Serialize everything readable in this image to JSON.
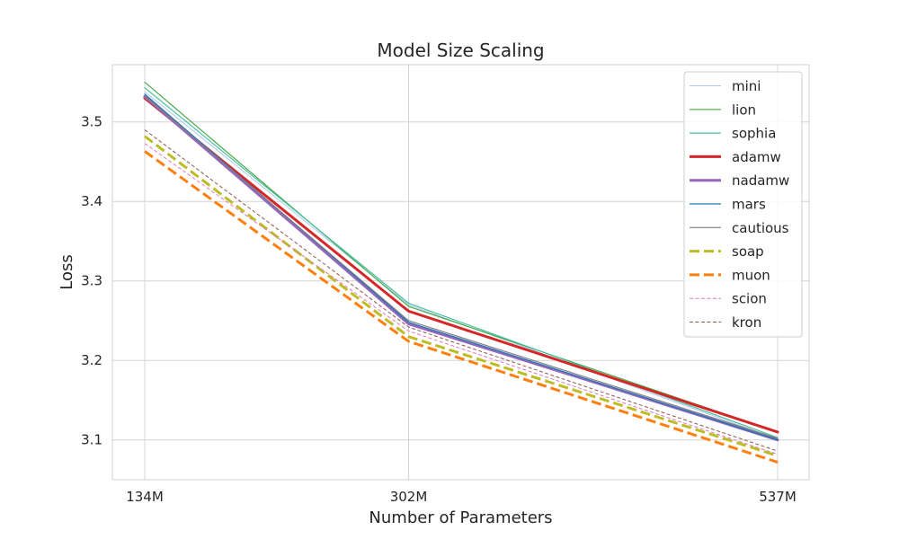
{
  "chart_data": {
    "type": "line",
    "title": "Model Size Scaling",
    "xlabel": "Number of Parameters",
    "ylabel": "Loss",
    "categories": [
      "134M",
      "302M",
      "537M"
    ],
    "yticks": [
      "3.1",
      "3.2",
      "3.3",
      "3.4",
      "3.5"
    ],
    "ylim": [
      3.05,
      3.572
    ],
    "grid": true,
    "legend_position": "top-right",
    "series": [
      {
        "name": "mini",
        "values": [
          3.538,
          3.27,
          3.101
        ],
        "color": "#aec7e8",
        "width": 1,
        "dash": "solid"
      },
      {
        "name": "lion",
        "values": [
          3.55,
          3.268,
          3.11
        ],
        "color": "#4aa84a",
        "width": 1.2,
        "dash": "solid"
      },
      {
        "name": "sophia",
        "values": [
          3.543,
          3.272,
          3.103
        ],
        "color": "#47c0a0",
        "width": 1.2,
        "dash": "solid"
      },
      {
        "name": "adamw",
        "values": [
          3.53,
          3.262,
          3.11
        ],
        "color": "#d62728",
        "width": 3,
        "dash": "solid"
      },
      {
        "name": "nadamw",
        "values": [
          3.532,
          3.246,
          3.1
        ],
        "color": "#9467bd",
        "width": 3,
        "dash": "solid"
      },
      {
        "name": "mars",
        "values": [
          3.535,
          3.248,
          3.1
        ],
        "color": "#1f77b4",
        "width": 1.2,
        "dash": "solid"
      },
      {
        "name": "cautious",
        "values": [
          3.533,
          3.25,
          3.102
        ],
        "color": "#7f7f7f",
        "width": 1.2,
        "dash": "solid"
      },
      {
        "name": "soap",
        "values": [
          3.482,
          3.23,
          3.08
        ],
        "color": "#bcbd22",
        "width": 3,
        "dash": "dashed"
      },
      {
        "name": "muon",
        "values": [
          3.463,
          3.224,
          3.072
        ],
        "color": "#ff7f0e",
        "width": 3,
        "dash": "dashed"
      },
      {
        "name": "scion",
        "values": [
          3.473,
          3.237,
          3.082
        ],
        "color": "#e377c2",
        "width": 1,
        "dash": "dashed"
      },
      {
        "name": "kron",
        "values": [
          3.49,
          3.242,
          3.086
        ],
        "color": "#8c564b",
        "width": 1,
        "dash": "dashed"
      }
    ]
  }
}
